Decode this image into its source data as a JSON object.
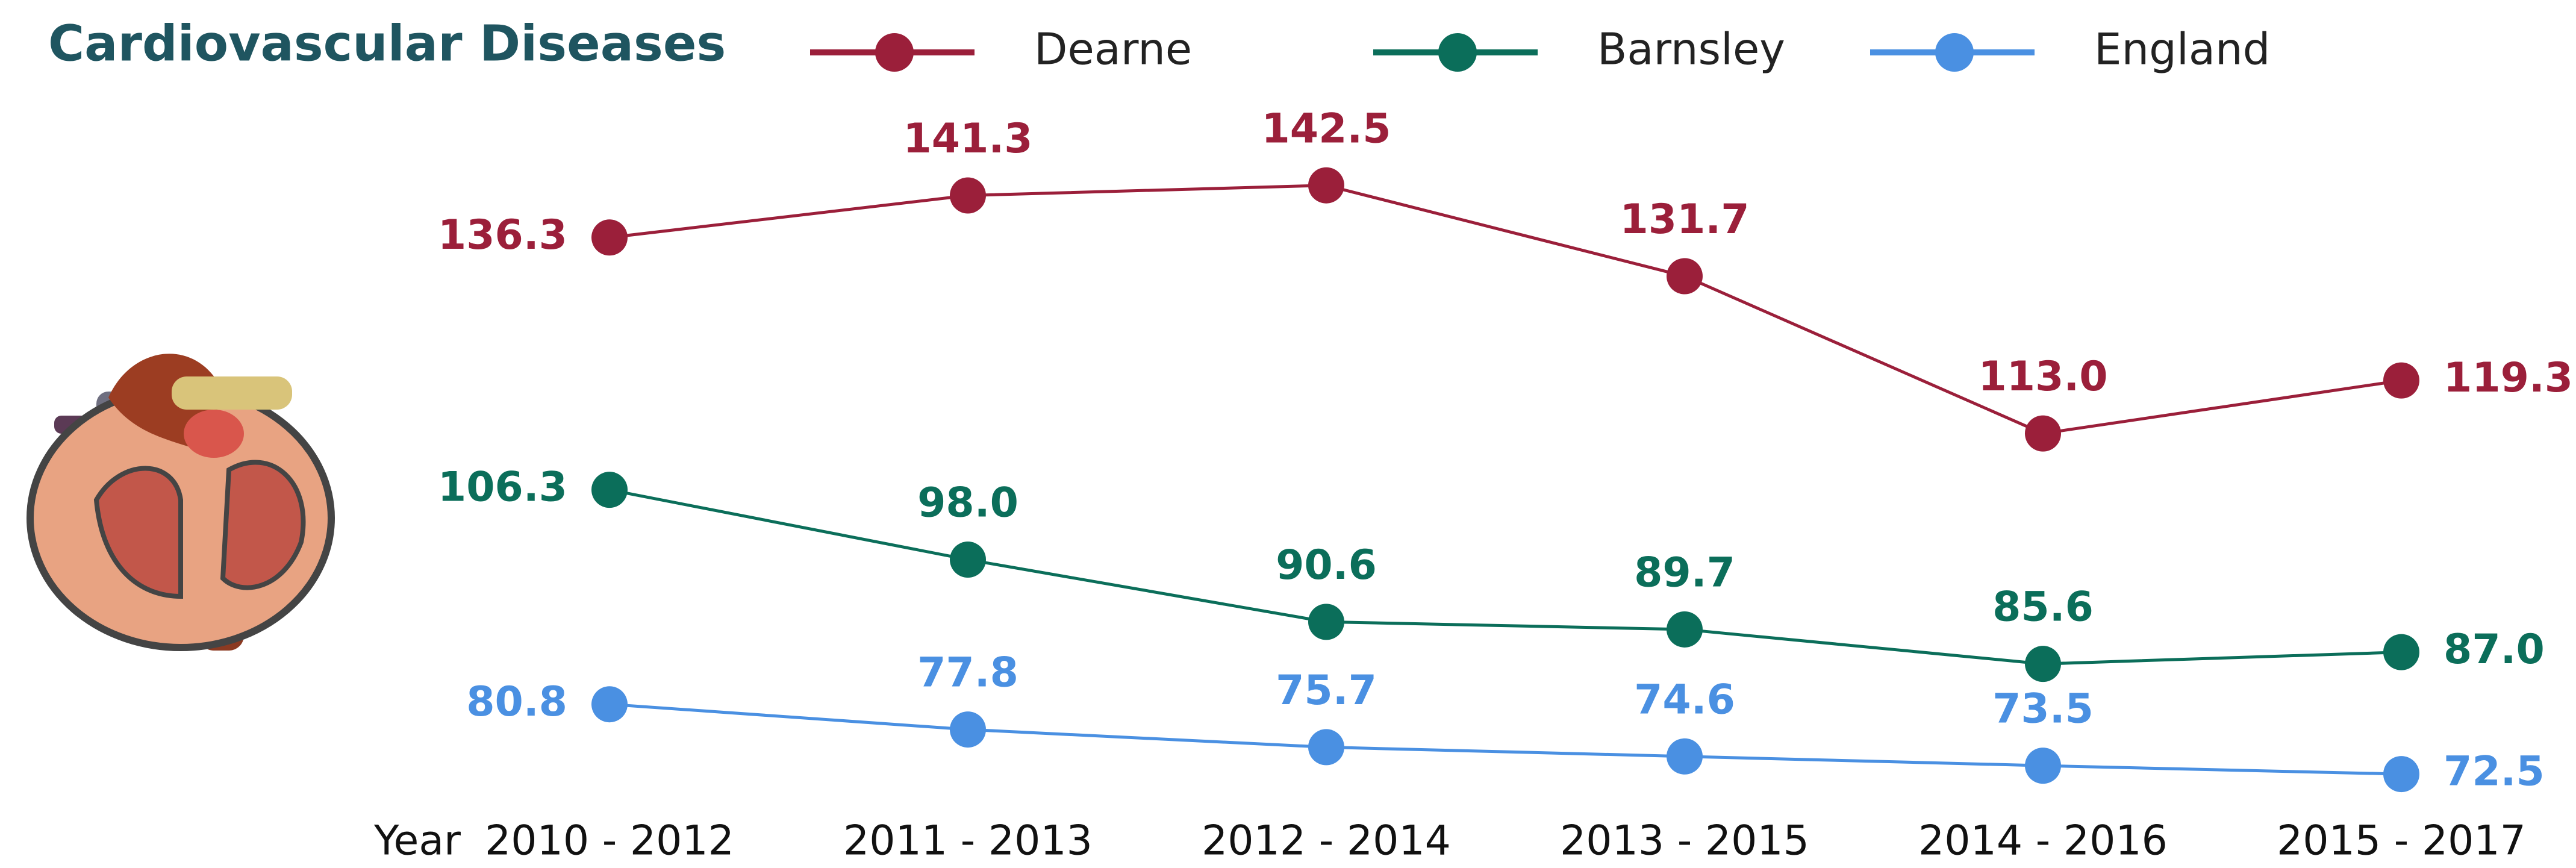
{
  "chart_data": {
    "type": "line",
    "title": "Cardiovascular Diseases",
    "x_label": "Year",
    "categories": [
      "2010 - 2012",
      "2011 - 2013",
      "2012 - 2014",
      "2013 - 2015",
      "2014 - 2016",
      "2015 - 2017"
    ],
    "series": [
      {
        "name": "Dearne",
        "color": "#9b1f3a",
        "values": [
          136.3,
          141.3,
          142.5,
          131.7,
          113.0,
          119.3
        ],
        "value_labels": [
          "136.3",
          "141.3",
          "142.5",
          "131.7",
          "113.0",
          "119.3"
        ]
      },
      {
        "name": "Barnsley",
        "color": "#0b6e5a",
        "values": [
          106.3,
          98.0,
          90.6,
          89.7,
          85.6,
          87.0
        ],
        "value_labels": [
          "106.3",
          "98.0",
          "90.6",
          "89.7",
          "85.6",
          "87.0"
        ]
      },
      {
        "name": "England",
        "color": "#4a90e2",
        "values": [
          80.8,
          77.8,
          75.7,
          74.6,
          73.5,
          72.5
        ],
        "value_labels": [
          "80.8",
          "77.8",
          "75.7",
          "74.6",
          "73.5",
          "72.5"
        ]
      }
    ],
    "ylim": [
      70,
      150
    ],
    "legend": "top"
  }
}
